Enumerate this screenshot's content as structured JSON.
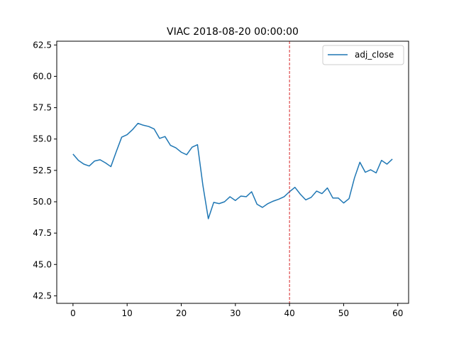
{
  "chart_data": {
    "type": "line",
    "title": "VIAC 2018-08-20 00:00:00",
    "xlabel": "",
    "ylabel": "",
    "xlim": [
      -3,
      62
    ],
    "ylim": [
      41.9,
      62.8
    ],
    "xticks": [
      0,
      10,
      20,
      30,
      40,
      50,
      60
    ],
    "xtick_labels": [
      "0",
      "10",
      "20",
      "30",
      "40",
      "50",
      "60"
    ],
    "yticks": [
      42.5,
      45.0,
      47.5,
      50.0,
      52.5,
      55.0,
      57.5,
      60.0,
      62.5
    ],
    "ytick_labels": [
      "42.5",
      "45.0",
      "47.5",
      "50.0",
      "52.5",
      "55.0",
      "57.5",
      "60.0",
      "62.5"
    ],
    "grid": false,
    "legend_position": "upper right",
    "vline": {
      "x": 40,
      "color": "#d62728",
      "style": "dashed"
    },
    "series": [
      {
        "name": "adj_close",
        "color": "#1f77b4",
        "x": [
          0,
          1,
          2,
          3,
          4,
          5,
          6,
          7,
          8,
          9,
          10,
          11,
          12,
          13,
          14,
          15,
          16,
          17,
          18,
          19,
          20,
          21,
          22,
          23,
          24,
          25,
          26,
          27,
          28,
          29,
          30,
          31,
          32,
          33,
          34,
          35,
          36,
          37,
          38,
          39,
          40,
          41,
          42,
          43,
          44,
          45,
          46,
          47,
          48,
          49,
          50,
          51,
          52,
          53,
          54,
          55,
          56,
          57,
          58,
          59
        ],
        "values": [
          53.8,
          53.3,
          53.0,
          52.85,
          53.25,
          53.35,
          53.1,
          52.8,
          54.0,
          55.15,
          55.35,
          55.75,
          56.25,
          56.1,
          56.0,
          55.8,
          55.05,
          55.2,
          54.5,
          54.3,
          53.95,
          53.75,
          54.35,
          54.55,
          51.3,
          48.65,
          49.95,
          49.85,
          50.0,
          50.4,
          50.1,
          50.45,
          50.4,
          50.8,
          49.8,
          49.55,
          49.85,
          50.05,
          50.2,
          50.4,
          50.8,
          51.15,
          50.6,
          50.15,
          50.35,
          50.85,
          50.65,
          51.1,
          50.3,
          50.3,
          49.9,
          50.25,
          51.9,
          53.15,
          52.35,
          52.55,
          52.3,
          53.3,
          53.0,
          53.4
        ]
      }
    ]
  }
}
